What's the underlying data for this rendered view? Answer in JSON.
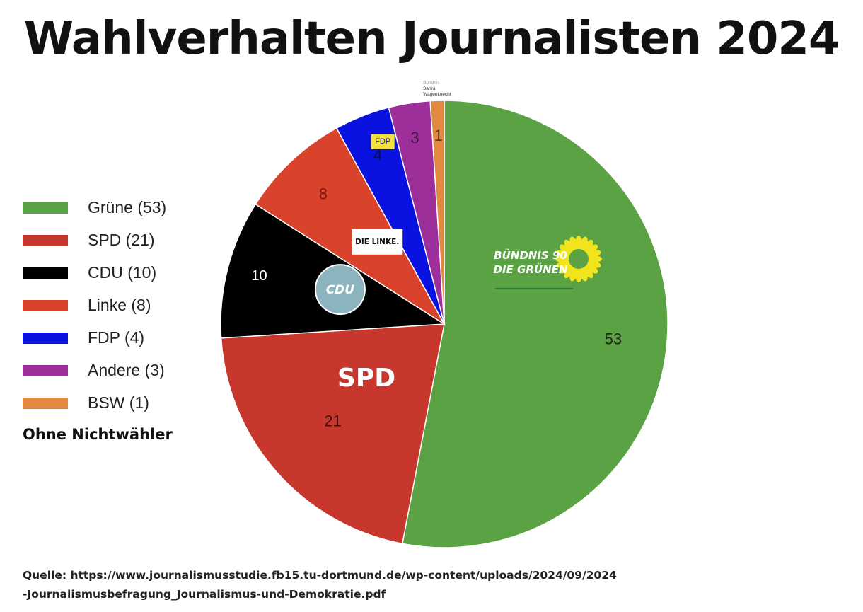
{
  "chart_data": {
    "type": "pie",
    "title": "Wahlverhalten Journalisten 2024",
    "slices": [
      {
        "key": "gruene",
        "legend": "Grüne (53)",
        "value": 53,
        "label": "53",
        "color": "#5aa244"
      },
      {
        "key": "spd",
        "legend": "SPD (21)",
        "value": 21,
        "label": "21",
        "color": "#c8372d"
      },
      {
        "key": "cdu",
        "legend": "CDU (10)",
        "value": 10,
        "label": "10",
        "color": "#000000"
      },
      {
        "key": "linke",
        "legend": "Linke (8)",
        "value": 8,
        "label": "8",
        "color": "#d9432c"
      },
      {
        "key": "fdp",
        "legend": "FDP (4)",
        "value": 4,
        "label": "4",
        "color": "#0a12e0"
      },
      {
        "key": "andere",
        "legend": "Andere (3)",
        "value": 3,
        "label": "3",
        "color": "#9c2f9a"
      },
      {
        "key": "bsw",
        "legend": "BSW (1)",
        "value": 1,
        "label": "1",
        "color": "#e0893f"
      }
    ],
    "direction": "clockwise from top",
    "legend_position": "left",
    "logos": {
      "gruene": "BÜNDNIS 90\nDIE GRÜNEN",
      "spd": "SPD",
      "cdu": "CDU",
      "linke": "DIE LINKE.",
      "fdp": "FDP",
      "bsw": "Bündnis\nSahra\nWagenknecht"
    }
  },
  "legend_note": "Ohne Nichtwähler",
  "source": {
    "line1": "Quelle: https://www.journalismusstudie.fb15.tu-dortmund.de/wp-content/uploads/2024/09/2024",
    "line2": "-Journalismusbefragung_Journalismus-und-Demokratie.pdf"
  }
}
